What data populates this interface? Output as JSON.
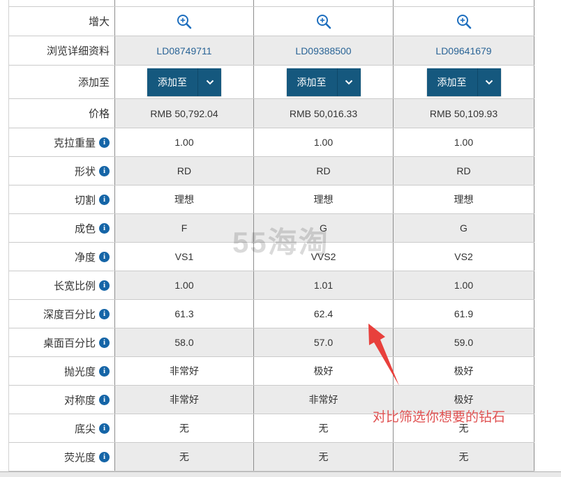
{
  "watermark": {
    "text": "55海淘"
  },
  "annotation": {
    "text": "对比筛选你想要的钻石",
    "text_color": "#e05353",
    "arrow_color": "#e8403c"
  },
  "colors": {
    "link_blue": "#2a6496",
    "button_blue": "#15587e",
    "zoom_icon_blue": "#1d6ebe",
    "info_icon_blue": "#1565a7",
    "shaded_row_bg": "#ebebeb"
  },
  "table": {
    "add_button_label": "添加至",
    "rows": [
      {
        "label": "增大",
        "type": "zoom"
      },
      {
        "label": "浏览详细资料",
        "type": "link",
        "values": [
          "LD08749711",
          "LD09388500",
          "LD09641679"
        ]
      },
      {
        "label": "添加至",
        "type": "button"
      },
      {
        "label": "价格",
        "type": "text",
        "values": [
          "RMB 50,792.04",
          "RMB 50,016.33",
          "RMB 50,109.93"
        ]
      },
      {
        "label": "克拉重量",
        "info": true,
        "type": "text",
        "values": [
          "1.00",
          "1.00",
          "1.00"
        ]
      },
      {
        "label": "形状",
        "info": true,
        "type": "text",
        "values": [
          "RD",
          "RD",
          "RD"
        ]
      },
      {
        "label": "切割",
        "info": true,
        "type": "text",
        "values": [
          "理想",
          "理想",
          "理想"
        ]
      },
      {
        "label": "成色",
        "info": true,
        "type": "text",
        "values": [
          "F",
          "G",
          "G"
        ]
      },
      {
        "label": "净度",
        "info": true,
        "type": "text",
        "values": [
          "VS1",
          "VVS2",
          "VS2"
        ]
      },
      {
        "label": "长宽比例",
        "info": true,
        "type": "text",
        "values": [
          "1.00",
          "1.01",
          "1.00"
        ]
      },
      {
        "label": "深度百分比",
        "info": true,
        "type": "text",
        "values": [
          "61.3",
          "62.4",
          "61.9"
        ]
      },
      {
        "label": "桌面百分比",
        "info": true,
        "type": "text",
        "values": [
          "58.0",
          "57.0",
          "59.0"
        ]
      },
      {
        "label": "抛光度",
        "info": true,
        "type": "text",
        "values": [
          "非常好",
          "极好",
          "极好"
        ]
      },
      {
        "label": "对称度",
        "info": true,
        "type": "text",
        "values": [
          "非常好",
          "非常好",
          "极好"
        ]
      },
      {
        "label": "底尖",
        "info": true,
        "type": "text",
        "values": [
          "无",
          "无",
          "无"
        ]
      },
      {
        "label": "荧光度",
        "info": true,
        "type": "text",
        "values": [
          "无",
          "无",
          "无"
        ]
      }
    ]
  }
}
